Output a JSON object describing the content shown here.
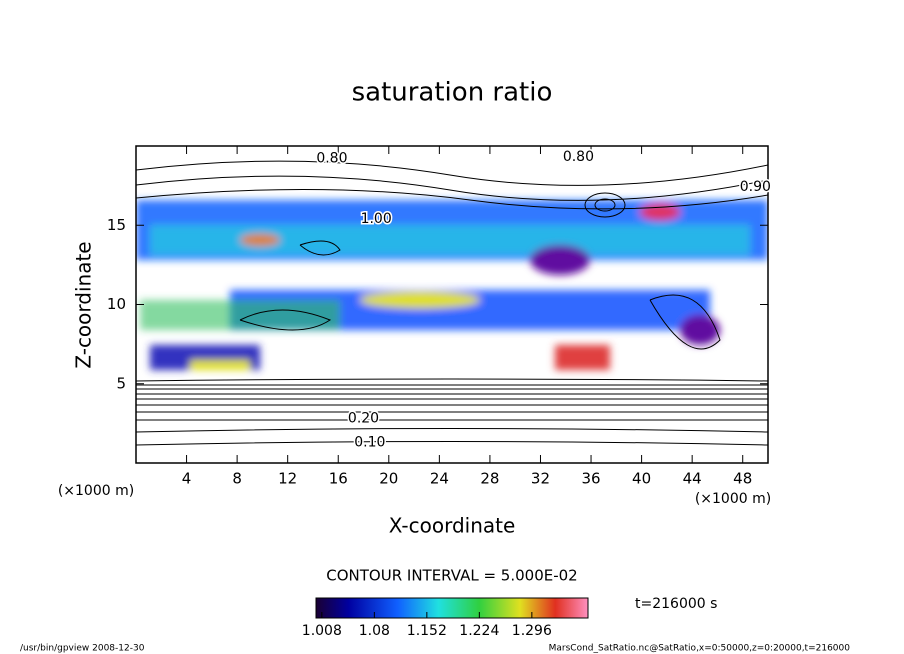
{
  "chart_data": {
    "type": "contour",
    "title": "saturation ratio",
    "xlabel": "X-coordinate",
    "ylabel": "Z-coordinate",
    "x_unit_label": "(×1000 m)",
    "y_unit_label": "(×1000 m)",
    "xlim": [
      0,
      50
    ],
    "ylim": [
      0,
      20
    ],
    "xticks": [
      4,
      8,
      12,
      16,
      20,
      24,
      28,
      32,
      36,
      40,
      44,
      48
    ],
    "yticks": [
      5,
      10,
      15
    ],
    "contour_interval_label": "CONTOUR INTERVAL = 5.000E-02",
    "contour_labels": [
      {
        "value": 0.1,
        "label": "0.10"
      },
      {
        "value": 0.2,
        "label": "0.20"
      },
      {
        "value": 0.8,
        "label": "0.80"
      },
      {
        "value": 0.8,
        "label": "0.80"
      },
      {
        "value": 0.9,
        "label": "0.90"
      },
      {
        "value": 1.0,
        "label": "1.00"
      }
    ],
    "colorbar": {
      "clim": [
        1.0,
        1.373
      ],
      "ticks": [
        1.008,
        1.08,
        1.152,
        1.224,
        1.296
      ]
    },
    "time_label": "t=216000 s",
    "footer_left": "/usr/bin/gpview  2008-12-30",
    "footer_right": "MarsCond_SatRatio.nc@SatRatio,x=0:50000,z=0:20000,t=216000"
  }
}
